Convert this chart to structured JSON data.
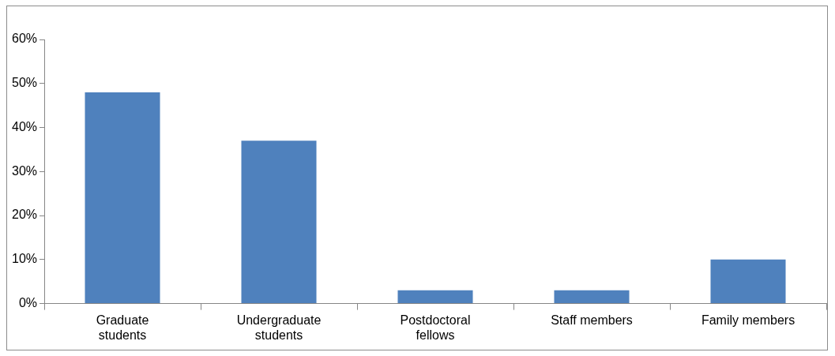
{
  "chart_data": {
    "type": "bar",
    "categories": [
      "Graduate students",
      "Undergraduate students",
      "Postdoctoral fellows",
      "Staff members",
      "Family members"
    ],
    "values": [
      48,
      37,
      3,
      3,
      10
    ],
    "color": "#4f81bd",
    "ylim": [
      0,
      60
    ],
    "yticks": [
      {
        "value": 0,
        "label": "0%"
      },
      {
        "value": 10,
        "label": "10%"
      },
      {
        "value": 20,
        "label": "20%"
      },
      {
        "value": 30,
        "label": "30%"
      },
      {
        "value": 40,
        "label": "40%"
      },
      {
        "value": 50,
        "label": "50%"
      },
      {
        "value": 60,
        "label": "60%"
      }
    ],
    "grid": false,
    "legend": false
  }
}
